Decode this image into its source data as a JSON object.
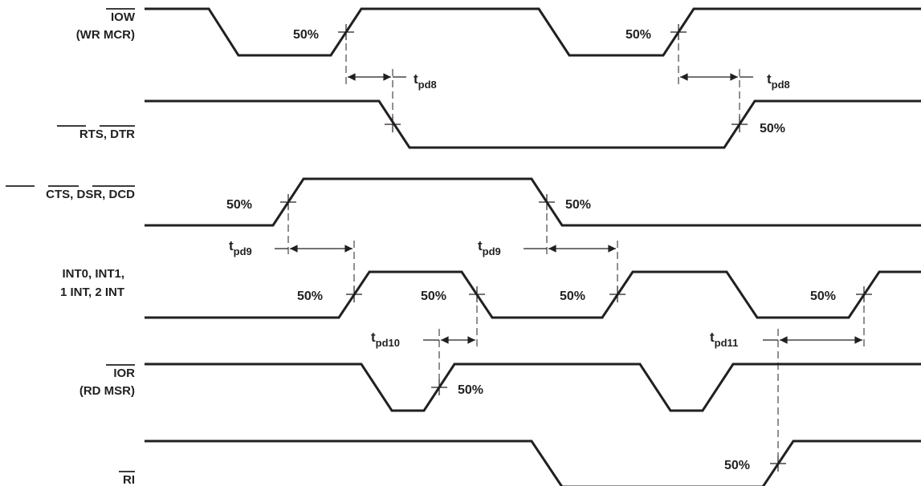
{
  "signals": [
    {
      "id": "iow",
      "lines": [
        "IOW",
        "(WR MCR)"
      ],
      "overline_line": 0
    },
    {
      "id": "rts",
      "lines": [
        "RTS, DTR"
      ]
    },
    {
      "id": "cts",
      "lines": [
        "CTS, DSR, DCD"
      ]
    },
    {
      "id": "int",
      "lines": [
        "INT0, INT1,",
        "1 INT, 2 INT"
      ]
    },
    {
      "id": "ior",
      "lines": [
        "IOR",
        "(RD MSR)"
      ],
      "overline_line": 0
    },
    {
      "id": "ri",
      "lines": [
        "RI"
      ]
    }
  ],
  "threshold_label": "50%",
  "timing": {
    "t_prefix": "t",
    "pd8": "pd8",
    "pd9": "pd9",
    "pd10": "pd10",
    "pd11": "pd11"
  }
}
